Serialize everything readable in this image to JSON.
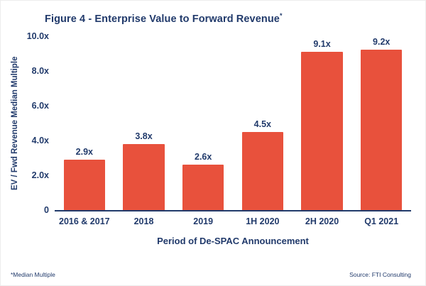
{
  "header": {
    "title": "Figure 4 - Enterprise Value to Forward Revenue",
    "superscript": "*"
  },
  "footer": {
    "footnote": "*Median Multiple",
    "source": "Source: FTI Consulting"
  },
  "colors": {
    "bar": "#E8513C",
    "text_navy": "#213A6B"
  },
  "chart_data": {
    "type": "bar",
    "title": "Figure 4 - Enterprise Value to Forward Revenue*",
    "categories": [
      "2016 & 2017",
      "2018",
      "2019",
      "1H 2020",
      "2H 2020",
      "Q1 2021"
    ],
    "values": [
      2.9,
      3.8,
      2.6,
      4.5,
      9.1,
      9.2
    ],
    "value_labels": [
      "2.9x",
      "3.8x",
      "2.6x",
      "4.5x",
      "9.1x",
      "9.2x"
    ],
    "xlabel": "Period of De-SPAC Announcement",
    "ylabel": "EV / Fwd Revenue Median Multiple",
    "ylim": [
      0,
      10
    ],
    "yticks": [
      0,
      2,
      4,
      6,
      8,
      10
    ],
    "ytick_labels": [
      "0",
      "2.0x",
      "4.0x",
      "6.0x",
      "8.0x",
      "10.0x"
    ],
    "grid": false,
    "legend": false,
    "bar_color": "#E8513C"
  }
}
